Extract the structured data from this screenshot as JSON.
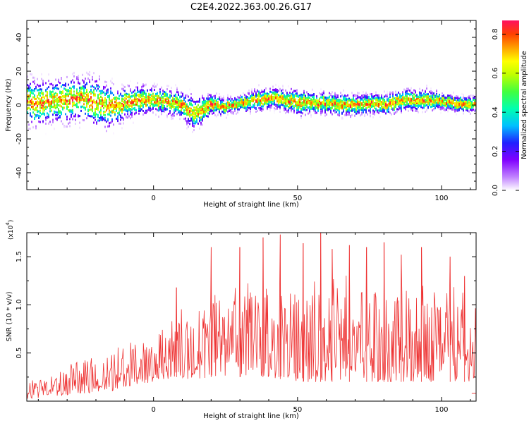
{
  "title": "C2E4.2022.363.00.26.G17",
  "chart_data": [
    {
      "type": "heatmap",
      "xlabel": "Height of straight line (km)",
      "ylabel": "Frequency (Hz)",
      "xlim": [
        -44,
        112
      ],
      "ylim": [
        -50,
        50
      ],
      "xticks": [
        "0",
        "50",
        "100"
      ],
      "xtick_values": [
        0,
        50,
        100
      ],
      "yticks": [
        "40",
        "20",
        "0",
        "-20",
        "-40"
      ],
      "ytick_values": [
        40,
        20,
        0,
        -20,
        -40
      ],
      "colorbar": {
        "label": "Normalized spectral amplitude",
        "range": [
          0.0,
          0.87
        ],
        "ticks": [
          "0.0",
          "0.2",
          "0.4",
          "0.6",
          "0.8"
        ],
        "tick_values": [
          0.0,
          0.2,
          0.4,
          0.6,
          0.8
        ],
        "colors": [
          "#ffffff",
          "#c080ff",
          "#8000ff",
          "#2020ff",
          "#00c0ff",
          "#00ffb0",
          "#40ff40",
          "#c0ff00",
          "#ffff00",
          "#ffa000",
          "#ff4000",
          "#ff1060"
        ]
      },
      "ridge": {
        "x": [
          -44,
          -40,
          -35,
          -30,
          -25,
          -20,
          -15,
          -10,
          -5,
          0,
          5,
          10,
          12,
          15,
          18,
          20,
          25,
          30,
          35,
          40,
          45,
          50,
          55,
          60,
          65,
          70,
          75,
          80,
          85,
          90,
          95,
          100,
          105,
          110,
          112
        ],
        "y": [
          2,
          1,
          2,
          3,
          4,
          1,
          -1,
          1,
          3,
          3,
          2,
          0,
          -3,
          -5,
          -2,
          0,
          -1,
          1,
          3,
          4,
          3,
          2,
          1,
          1,
          0,
          0,
          1,
          0,
          2,
          3,
          3,
          2,
          1,
          0,
          1
        ],
        "spread": [
          9,
          9,
          8,
          9,
          8,
          10,
          8,
          6,
          6,
          5,
          5,
          5,
          6,
          6,
          5,
          4,
          3,
          3,
          4,
          4,
          4,
          5,
          4,
          4,
          4,
          4,
          4,
          4,
          4,
          4,
          4,
          3,
          3,
          3,
          3
        ]
      }
    },
    {
      "type": "line",
      "xlabel": "Height of straight line (km)",
      "ylabel": "SNR (10 * v/v)",
      "y_multiplier": "(x10",
      "y_multiplier_exp": "4",
      "y_multiplier_close": ")",
      "xlim": [
        -44,
        112
      ],
      "ylim": [
        0,
        1.75
      ],
      "xticks": [
        "0",
        "50",
        "100"
      ],
      "xtick_values": [
        0,
        50,
        100
      ],
      "yticks": [
        "1.5",
        "1.0",
        "0.5"
      ],
      "ytick_values": [
        1.5,
        1.0,
        0.5
      ],
      "color": "#ee3333",
      "envelope": {
        "x": [
          -44,
          -35,
          -25,
          -15,
          -10,
          0,
          8,
          15,
          20,
          30,
          40,
          50,
          60,
          70,
          80,
          90,
          100,
          110,
          112
        ],
        "upper": [
          0.2,
          0.3,
          0.5,
          0.55,
          0.6,
          0.75,
          1.0,
          0.95,
          1.15,
          1.25,
          1.35,
          1.3,
          1.4,
          1.3,
          1.3,
          1.3,
          1.25,
          1.1,
          1.0
        ],
        "lower": [
          0.02,
          0.05,
          0.08,
          0.1,
          0.15,
          0.2,
          0.25,
          0.2,
          0.25,
          0.25,
          0.25,
          0.2,
          0.2,
          0.2,
          0.2,
          0.2,
          0.2,
          0.2,
          0.1
        ]
      },
      "peaks": [
        {
          "x": 8,
          "y": 1.18
        },
        {
          "x": 20,
          "y": 1.6
        },
        {
          "x": 30,
          "y": 1.6
        },
        {
          "x": 38,
          "y": 1.7
        },
        {
          "x": 44,
          "y": 1.73
        },
        {
          "x": 52,
          "y": 1.64
        },
        {
          "x": 58,
          "y": 1.75
        },
        {
          "x": 62,
          "y": 1.58
        },
        {
          "x": 68,
          "y": 1.62
        },
        {
          "x": 74,
          "y": 1.6
        },
        {
          "x": 80,
          "y": 1.65
        },
        {
          "x": 86,
          "y": 1.52
        },
        {
          "x": 93,
          "y": 1.6
        },
        {
          "x": 103,
          "y": 1.5
        },
        {
          "x": 108,
          "y": 1.3
        }
      ]
    }
  ]
}
